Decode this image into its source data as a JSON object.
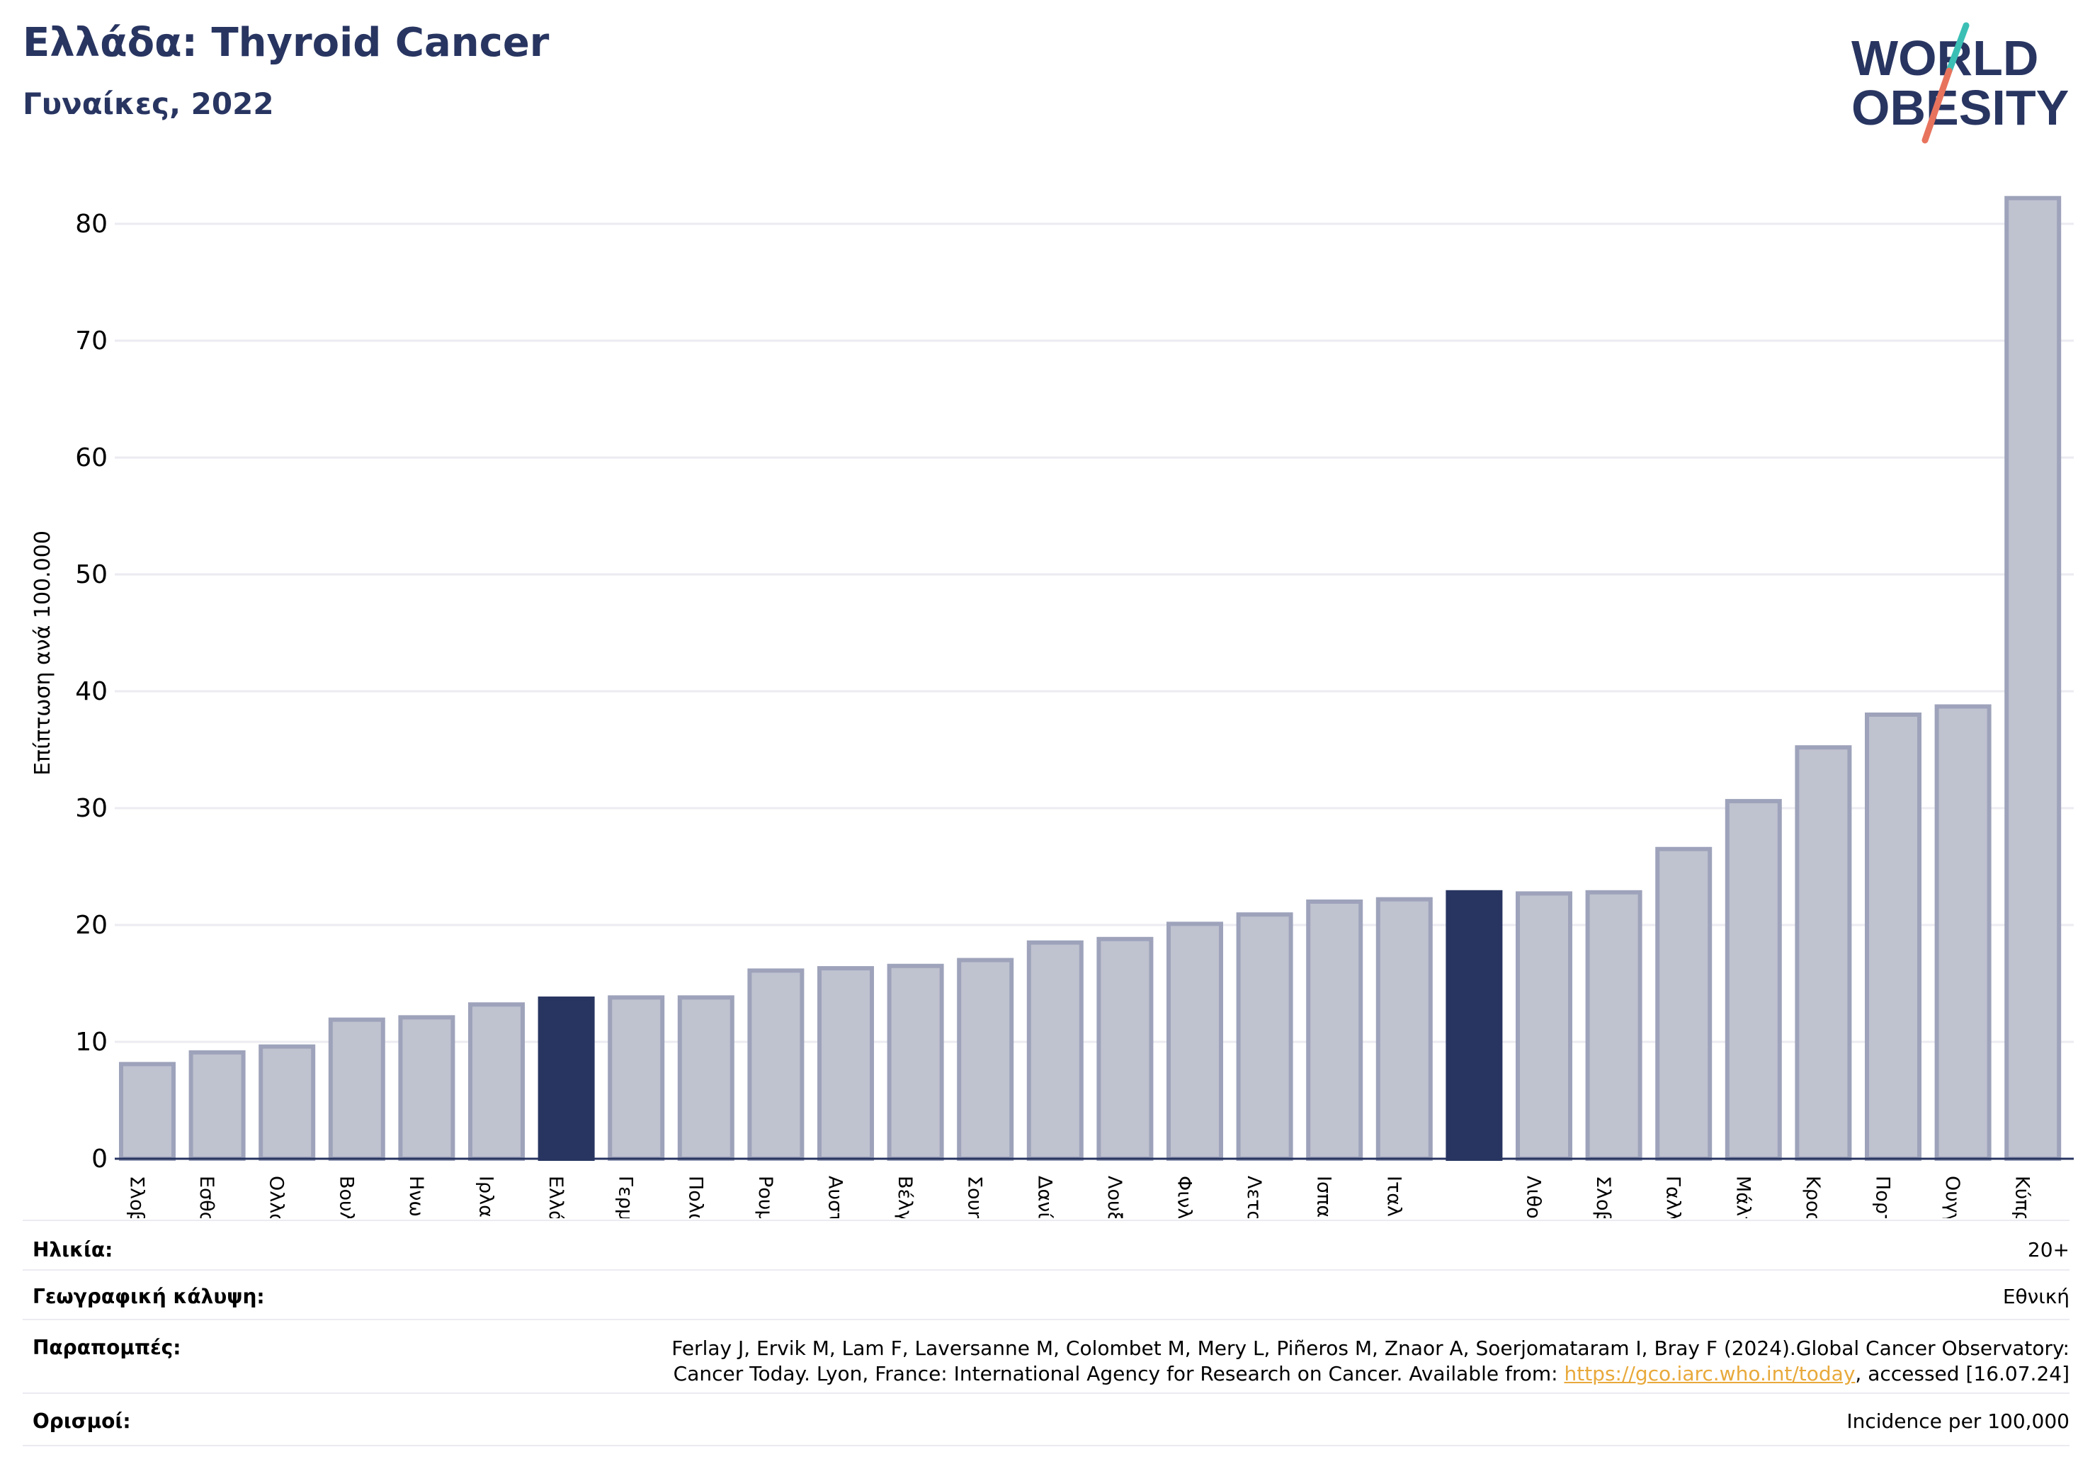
{
  "header": {
    "title": "Ελλάδα: Thyroid Cancer",
    "subtitle": "Γυναίκες, 2022",
    "logo_line1": "WORLD",
    "logo_line2": "OBESITY"
  },
  "chart_data": {
    "type": "bar",
    "ylabel": "Επίπτωση ανά 100.000",
    "ylim": [
      0,
      85
    ],
    "yticks": [
      0,
      10,
      20,
      30,
      40,
      50,
      60,
      70,
      80
    ],
    "grid": true,
    "categories": [
      "Σλοβακία",
      "Εσθονία",
      "Ολλανδία",
      "Βουλγαρία",
      "Ηνωμένο Βασίλειο",
      "Ιρλανδία",
      "Ελλάδα",
      "Γερμανία",
      "Πολωνία",
      "Ρουμανία",
      "Αυστρία",
      "Βέλγιο",
      "Σουηδία",
      "Δανία",
      "Λουξεμβούργο",
      "Φινλανδία",
      "Λετονία",
      "Ισπανία",
      "Ιταλία",
      "",
      "Λιθουανία",
      "Σλοβενία",
      "Γαλλία",
      "Μάλτα",
      "Κροατία",
      "Πορτογαλία",
      "Ουγγαρία",
      "Κύπρος"
    ],
    "values": [
      8.1,
      9.1,
      9.6,
      11.9,
      12.1,
      13.2,
      13.7,
      13.8,
      13.8,
      16.1,
      16.3,
      16.5,
      17.0,
      18.5,
      18.8,
      20.1,
      20.9,
      22.0,
      22.2,
      22.8,
      22.7,
      22.8,
      26.5,
      30.6,
      35.2,
      38.0,
      38.7,
      82.2
    ],
    "highlighted": [
      6,
      19
    ],
    "colors": {
      "highlight": "#283561",
      "bar_fill": "#bfc2cf",
      "bar_edge": "#9ea3bb",
      "grid": "#ebebf2",
      "axis": "#283561"
    }
  },
  "info": {
    "age_label": "Ηλικία:",
    "age_value": "20+",
    "coverage_label": "Γεωγραφική κάλυψη:",
    "coverage_value": "Εθνική",
    "refs_label": "Παραπομπές:",
    "refs_text_1": "Ferlay J, Ervik M, Lam F, Laversanne M, Colombet M, Mery L, Piñeros M, Znaor A, Soerjomataram I, Bray F (2024).Global Cancer Observatory:",
    "refs_text_2": "Cancer Today. Lyon, France: International Agency for Research on Cancer. Available from: ",
    "refs_link": "https://gco.iarc.who.int/today",
    "refs_text_3": ", accessed [16.07.24]",
    "definitions_label": "Ορισμοί:",
    "definitions_value": "Incidence per 100,000"
  }
}
